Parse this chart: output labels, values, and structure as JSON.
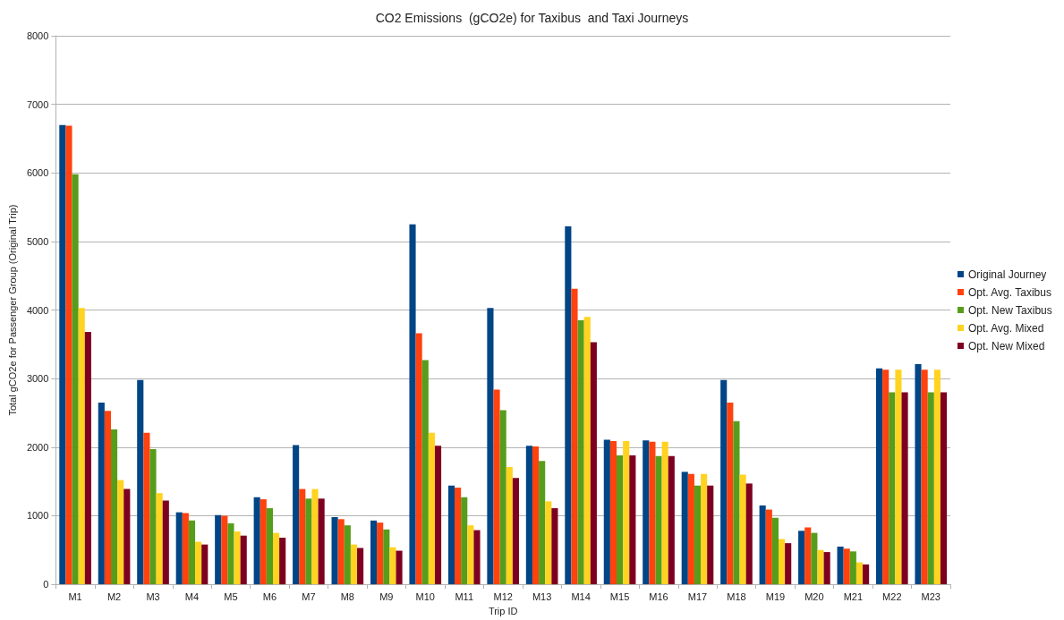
{
  "chart_data": {
    "type": "bar",
    "title": "CO2 Emissions  (gCO2e) for Taxibus  and Taxi Journeys",
    "xlabel": "Trip ID",
    "ylabel": "Total gCO2e for Passenger Group (Original Trip)",
    "categories": [
      "M1",
      "M2",
      "M3",
      "M4",
      "M5",
      "M6",
      "M7",
      "M8",
      "M9",
      "M10",
      "M11",
      "M12",
      "M13",
      "M14",
      "M15",
      "M16",
      "M17",
      "M18",
      "M19",
      "M20",
      "M21",
      "M22",
      "M23"
    ],
    "series": [
      {
        "name": "Original Journey",
        "color": "#004586",
        "values": [
          6700,
          2650,
          2980,
          1050,
          1010,
          1270,
          2030,
          980,
          930,
          5250,
          1440,
          4030,
          2020,
          5220,
          2110,
          2100,
          1640,
          2980,
          1150,
          780,
          550,
          3150,
          3210
        ]
      },
      {
        "name": "Opt. Avg. Taxibus",
        "color": "#ff420e",
        "values": [
          6690,
          2530,
          2210,
          1040,
          1000,
          1240,
          1390,
          950,
          900,
          3660,
          1410,
          2840,
          2010,
          4310,
          2090,
          2080,
          1610,
          2650,
          1090,
          830,
          520,
          3130,
          3130
        ]
      },
      {
        "name": "Opt. New Taxibus",
        "color": "#579d1c",
        "values": [
          5980,
          2260,
          1970,
          930,
          890,
          1110,
          1250,
          860,
          800,
          3270,
          1270,
          2540,
          1800,
          3850,
          1880,
          1870,
          1440,
          2380,
          970,
          750,
          480,
          2800,
          2800
        ]
      },
      {
        "name": "Opt. Avg. Mixed",
        "color": "#ffd320",
        "values": [
          4030,
          1520,
          1330,
          620,
          770,
          750,
          1390,
          580,
          540,
          2210,
          860,
          1710,
          1210,
          3900,
          2090,
          2080,
          1610,
          1600,
          660,
          500,
          320,
          3130,
          3130
        ]
      },
      {
        "name": "Opt. New Mixed",
        "color": "#7e0021",
        "values": [
          3680,
          1390,
          1220,
          580,
          710,
          680,
          1250,
          530,
          490,
          2020,
          790,
          1550,
          1110,
          3530,
          1880,
          1870,
          1440,
          1470,
          600,
          470,
          290,
          2800,
          2800
        ]
      }
    ],
    "ylim": [
      0,
      8000
    ],
    "yticks": [
      0,
      1000,
      2000,
      3000,
      4000,
      5000,
      6000,
      7000,
      8000
    ],
    "grid": "y",
    "legend": "right"
  }
}
